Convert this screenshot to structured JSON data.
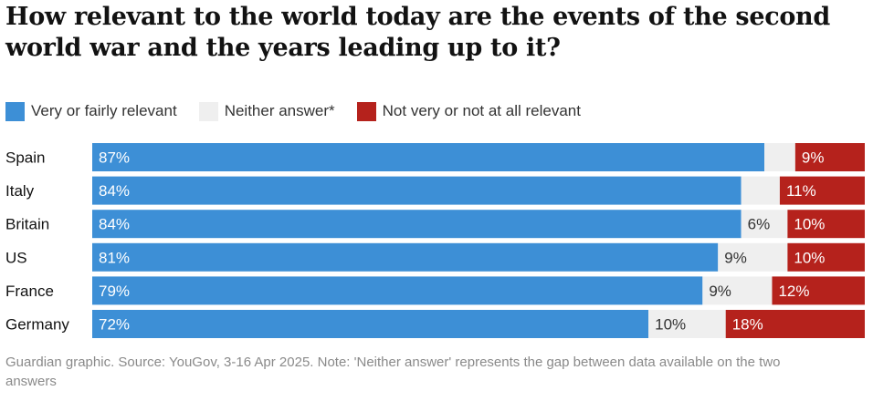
{
  "title": "How relevant to the world today are the events of the second world war and the years leading up to it?",
  "legend": [
    {
      "label": "Very or fairly relevant",
      "color": "#3d8fd6"
    },
    {
      "label": "Neither answer*",
      "color": "#efefef"
    },
    {
      "label": "Not very or not at all relevant",
      "color": "#b5221c"
    }
  ],
  "footer": "Guardian graphic. Source: YouGov, 3-16 Apr 2025. Note: 'Neither answer' represents the gap between data available on the two answers",
  "chart_data": {
    "type": "bar",
    "orientation": "horizontal",
    "stacked": true,
    "title": "How relevant to the world today are the events of the second world war and the years leading up to it?",
    "categories": [
      "Spain",
      "Italy",
      "Britain",
      "US",
      "France",
      "Germany"
    ],
    "series": [
      {
        "name": "Very or fairly relevant",
        "color": "#3d8fd6",
        "values": [
          87,
          84,
          84,
          81,
          79,
          72
        ],
        "labels": [
          "87%",
          "84%",
          "84%",
          "81%",
          "79%",
          "72%"
        ]
      },
      {
        "name": "Neither answer*",
        "color": "#efefef",
        "values": [
          4,
          5,
          6,
          9,
          9,
          10
        ],
        "labels": [
          "",
          "",
          "6%",
          "9%",
          "9%",
          "10%"
        ]
      },
      {
        "name": "Not very or not at all relevant",
        "color": "#b5221c",
        "values": [
          9,
          11,
          10,
          10,
          12,
          18
        ],
        "labels": [
          "9%",
          "11%",
          "10%",
          "10%",
          "12%",
          "18%"
        ]
      }
    ],
    "xlim": [
      0,
      100
    ],
    "grid": false,
    "legend_position": "top-left"
  }
}
